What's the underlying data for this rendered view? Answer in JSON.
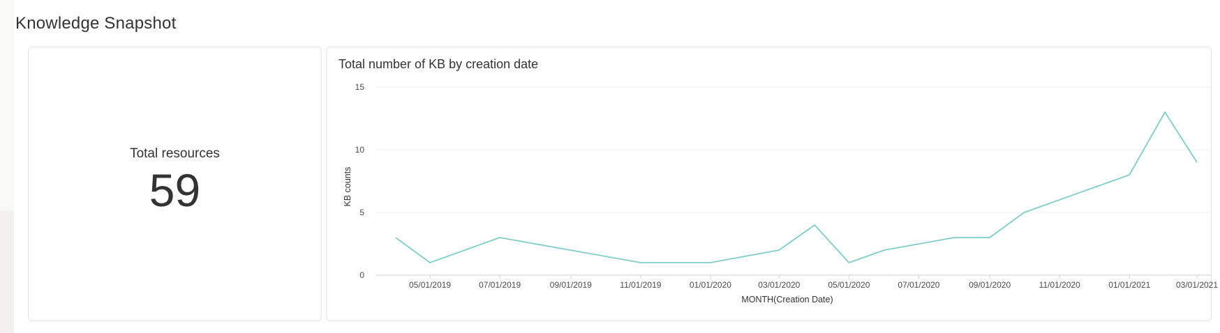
{
  "page": {
    "title": "Knowledge Snapshot"
  },
  "kpi": {
    "label": "Total resources",
    "value": "59"
  },
  "colors": {
    "line": "#7ecdc9",
    "grid": "#eeeeee",
    "axis": "#d0d0d0"
  },
  "chart_data": {
    "type": "line",
    "title": "Total number of KB by creation date",
    "xlabel": "MONTH(Creation Date)",
    "ylabel": "KB counts",
    "ylim": [
      0,
      15
    ],
    "yticks": [
      0,
      5,
      10,
      15
    ],
    "xlim": [
      "2019-03-15",
      "2021-03-01"
    ],
    "xticks": [
      "05/01/2019",
      "07/01/2019",
      "09/01/2019",
      "11/01/2019",
      "01/01/2020",
      "03/01/2020",
      "05/01/2020",
      "07/01/2020",
      "09/01/2020",
      "11/01/2020",
      "01/01/2021",
      "03/01/2021"
    ],
    "grid": "horizontal",
    "series": [
      {
        "x": [
          "2019-04-01",
          "2019-05-01",
          "2019-07-01",
          "2019-11-01",
          "2020-01-01",
          "2020-03-01",
          "2020-04-01",
          "2020-05-01",
          "2020-06-01",
          "2020-08-01",
          "2020-09-01",
          "2020-10-01",
          "2021-01-01",
          "2021-02-01",
          "2021-03-01"
        ],
        "values": [
          3,
          1,
          3,
          1,
          1,
          2,
          4,
          1,
          2,
          3,
          3,
          5,
          8,
          13,
          9
        ]
      }
    ]
  }
}
